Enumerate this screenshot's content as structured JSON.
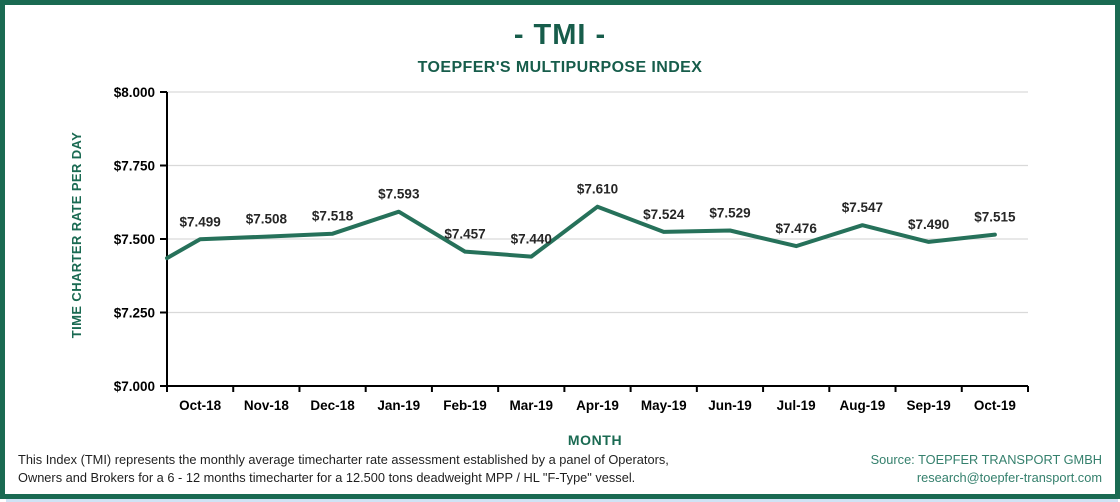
{
  "colors": {
    "dark_green": "#1a6a52",
    "line_green": "#26715a",
    "source_teal": "#35806d",
    "grid_gray": "#d9d9d9",
    "axis_black": "#000000",
    "label_dark": "#262626"
  },
  "header": {
    "title": "- TMI -",
    "subtitle": "TOEPFER'S MULTIPURPOSE INDEX"
  },
  "chart_data": {
    "type": "line",
    "title": "- TMI -",
    "subtitle": "TOEPFER'S MULTIPURPOSE INDEX",
    "xlabel": "MONTH",
    "ylabel": "TIME CHARTER RATE PER DAY",
    "categories": [
      "Oct-18",
      "Nov-18",
      "Dec-18",
      "Jan-19",
      "Feb-19",
      "Mar-19",
      "Apr-19",
      "May-19",
      "Jun-19",
      "Jul-19",
      "Aug-19",
      "Sep-19",
      "Oct-19"
    ],
    "values": [
      7499,
      7508,
      7518,
      7593,
      7457,
      7440,
      7610,
      7524,
      7529,
      7476,
      7547,
      7490,
      7515
    ],
    "point_labels": [
      "$7.499",
      "$7.508",
      "$7.518",
      "$7.593",
      "$7.457",
      "$7.440",
      "$7.610",
      "$7.524",
      "$7.529",
      "$7.476",
      "$7.547",
      "$7.490",
      "$7.515"
    ],
    "edge_start_value": 7435,
    "ylim": [
      7000,
      8000
    ],
    "yticks": [
      {
        "value": 8000,
        "label": "$8.000"
      },
      {
        "value": 7750,
        "label": "$7.750"
      },
      {
        "value": 7500,
        "label": "$7.500"
      },
      {
        "value": 7250,
        "label": "$7.250"
      },
      {
        "value": 7000,
        "label": "$7.000"
      }
    ],
    "grid": "horizontal",
    "legend": "none"
  },
  "footer": {
    "note_line1": "This Index (TMI) represents the monthly average timecharter rate assessment established by a panel of Operators,",
    "note_line2": "Owners and Brokers for a 6 - 12 months timecharter for a 12.500 tons deadweight MPP / HL \"F-Type\" vessel.",
    "source_line1": "Source: TOEPFER TRANSPORT GMBH",
    "source_line2": "research@toepfer-transport.com"
  }
}
